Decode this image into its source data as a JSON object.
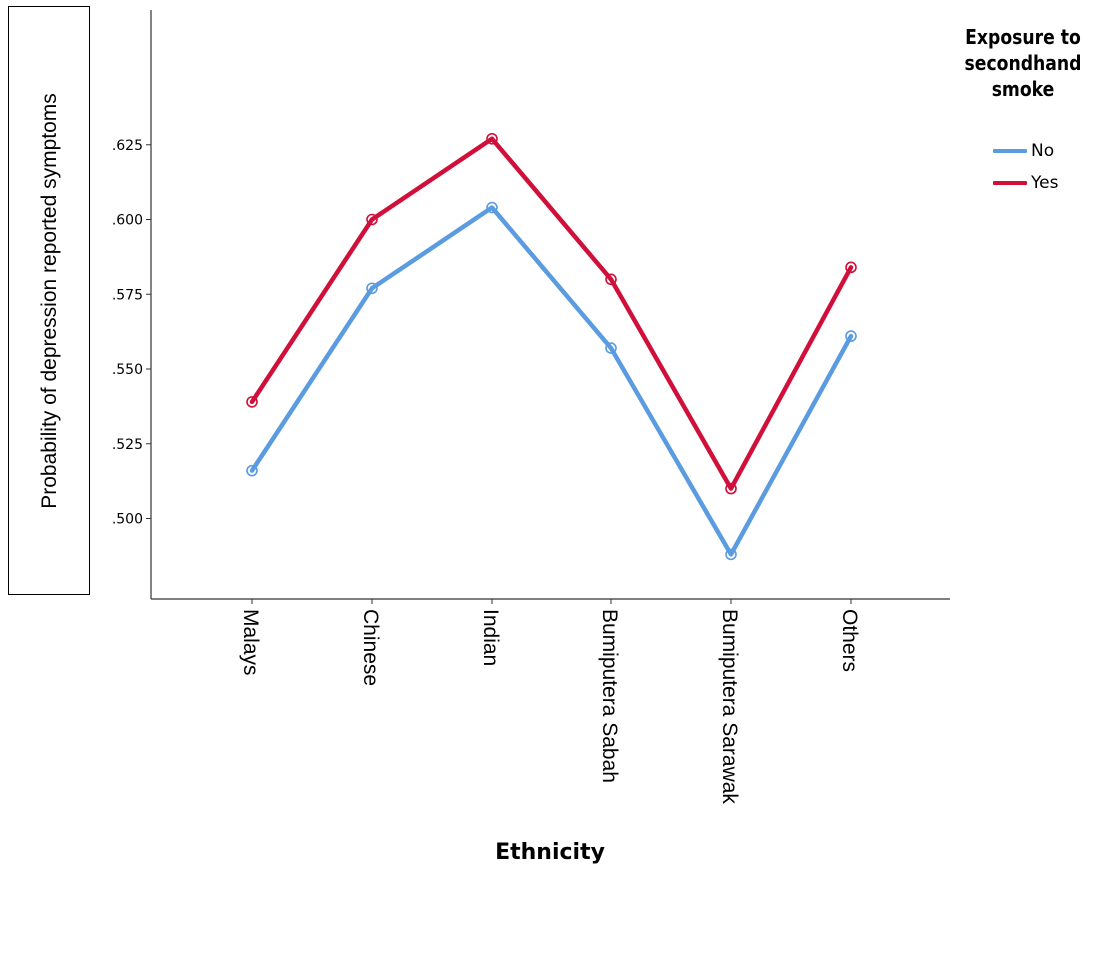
{
  "chart_data": {
    "type": "line",
    "xlabel": "Ethnicity",
    "ylabel": "Probability of depression reported symptoms",
    "categories": [
      "Malays",
      "Chinese",
      "Indian",
      "Bumiputera Sabah",
      "Bumiputera Sarawak",
      "Others"
    ],
    "ylim": [
      0.485,
      0.635
    ],
    "yticks": [
      0.5,
      0.525,
      0.55,
      0.575,
      0.6,
      0.625
    ],
    "ytick_labels": [
      ".500",
      ".525",
      ".550",
      ".575",
      ".600",
      ".625"
    ],
    "grid": false,
    "legend": {
      "title": "Exposure to secondhand smoke",
      "title_lines": [
        "Exposure to",
        "secondhand",
        "smoke"
      ],
      "placement": "top-right"
    },
    "series": [
      {
        "name": "No",
        "color": "#5b9be0",
        "values": [
          0.516,
          0.577,
          0.604,
          0.557,
          0.488,
          0.561
        ]
      },
      {
        "name": "Yes",
        "color": "#d0103a",
        "values": [
          0.539,
          0.6,
          0.627,
          0.58,
          0.51,
          0.584
        ]
      }
    ]
  }
}
